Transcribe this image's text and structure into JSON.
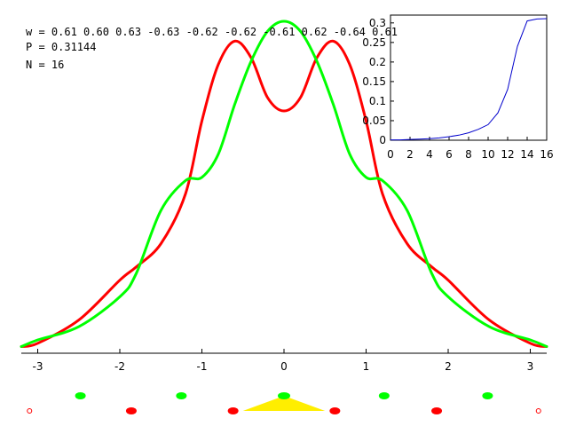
{
  "info": {
    "w_label": "w = 0.61 0.60 0.63 -0.63 -0.62 -0.62 -0.61 0.62 -0.64 0.61",
    "p_label": "P = 0.31144",
    "n_label": "N = 16"
  },
  "colors": {
    "red": "#ff0000",
    "green": "#00ff00",
    "blue": "#0000cc",
    "yellow": "#ffee00",
    "axis": "#000000"
  },
  "chart_data": [
    {
      "type": "line",
      "title": "",
      "xlabel": "",
      "ylabel": "",
      "xlim": [
        -3.2,
        3.2
      ],
      "ylim": [
        0,
        1
      ],
      "grid": false,
      "x_ticks": [
        "-3",
        "-2",
        "-1",
        "0",
        "1",
        "2",
        "3"
      ],
      "series": [
        {
          "color": "red",
          "x": [
            -3.2,
            -3.0,
            -2.5,
            -2.0,
            -1.8,
            -1.5,
            -1.2,
            -1.0,
            -0.8,
            -0.6,
            -0.4,
            -0.2,
            0.0,
            0.2,
            0.4,
            0.6,
            0.8,
            1.0,
            1.2,
            1.5,
            1.8,
            2.0,
            2.5,
            3.0,
            3.2
          ],
          "values": [
            0.02,
            0.03,
            0.1,
            0.22,
            0.26,
            0.33,
            0.48,
            0.7,
            0.87,
            0.94,
            0.89,
            0.77,
            0.73,
            0.77,
            0.89,
            0.94,
            0.87,
            0.7,
            0.48,
            0.33,
            0.26,
            0.22,
            0.1,
            0.03,
            0.02
          ]
        },
        {
          "color": "green",
          "x": [
            -3.2,
            -3.0,
            -2.5,
            -2.0,
            -1.8,
            -1.5,
            -1.2,
            -1.0,
            -0.8,
            -0.6,
            -0.4,
            -0.2,
            0.0,
            0.2,
            0.4,
            0.6,
            0.8,
            1.0,
            1.2,
            1.5,
            1.8,
            2.0,
            2.5,
            3.0,
            3.2
          ],
          "values": [
            0.02,
            0.04,
            0.08,
            0.17,
            0.24,
            0.43,
            0.52,
            0.53,
            0.6,
            0.75,
            0.88,
            0.97,
            1.0,
            0.97,
            0.88,
            0.75,
            0.6,
            0.53,
            0.52,
            0.43,
            0.24,
            0.17,
            0.08,
            0.04,
            0.02
          ]
        }
      ],
      "markers": {
        "green_x": [
          -2.48,
          -1.25,
          0.0,
          1.22,
          2.48
        ],
        "red_x": [
          -1.86,
          -0.62,
          0.62,
          1.86
        ],
        "open_circle_x": [
          -3.1,
          3.1
        ],
        "triangle": {
          "x": [
            -0.5,
            0.0,
            0.5
          ]
        }
      }
    },
    {
      "type": "line",
      "title": "",
      "xlabel": "",
      "ylabel": "",
      "xlim": [
        0,
        16
      ],
      "ylim": [
        0,
        0.32
      ],
      "grid": false,
      "x_ticks": [
        "0",
        "2",
        "4",
        "6",
        "8",
        "10",
        "12",
        "14",
        "16"
      ],
      "y_ticks": [
        "0",
        "0.05",
        "0.1",
        "0.15",
        "0.2",
        "0.25",
        "0.3"
      ],
      "series": [
        {
          "color": "blue",
          "x": [
            0,
            1,
            2,
            3,
            4,
            5,
            6,
            7,
            8,
            9,
            10,
            11,
            12,
            13,
            14,
            15,
            16
          ],
          "values": [
            0.001,
            0.001,
            0.002,
            0.003,
            0.004,
            0.006,
            0.009,
            0.013,
            0.019,
            0.028,
            0.04,
            0.07,
            0.13,
            0.24,
            0.305,
            0.31,
            0.311
          ]
        }
      ]
    }
  ]
}
